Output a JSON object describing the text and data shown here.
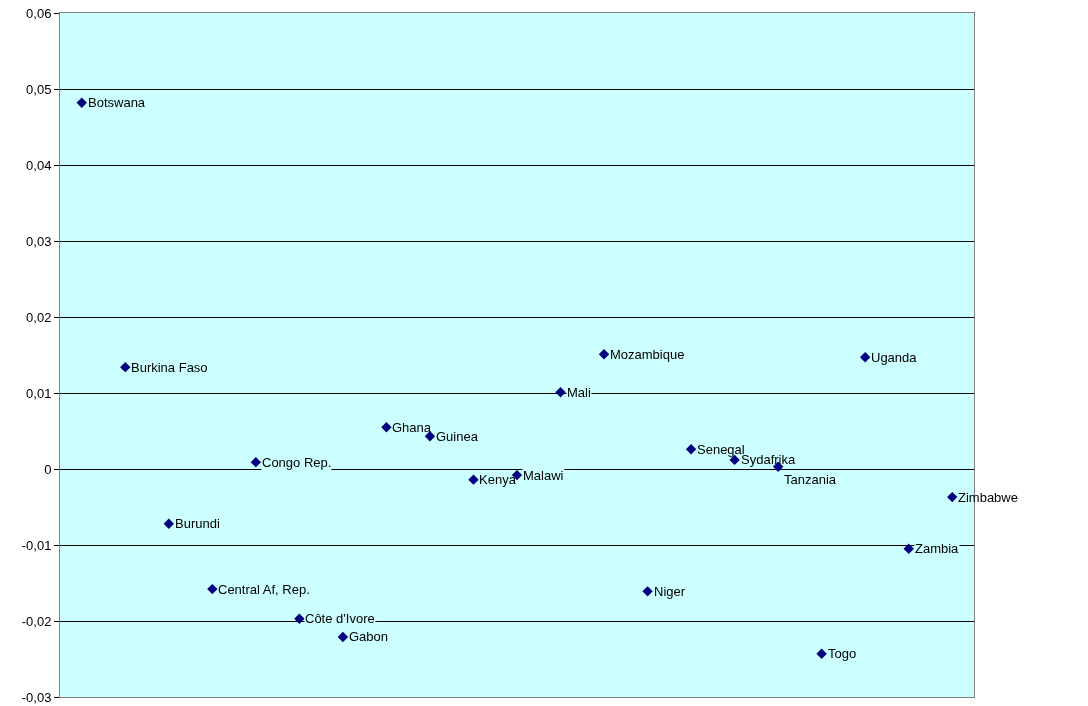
{
  "chart_data": {
    "type": "scatter",
    "categories": [
      null,
      null,
      null,
      null,
      null,
      null,
      null,
      null,
      null,
      null,
      null,
      null,
      null,
      null,
      null,
      null,
      null,
      null,
      null,
      null,
      null
    ],
    "series": [
      {
        "color": "#000080",
        "values": [
          0.0482,
          0.0134,
          -0.0072,
          -0.0158,
          0.0009,
          -0.0197,
          -0.0221,
          0.0055,
          0.0043,
          -0.0014,
          -0.0008,
          0.0101,
          0.0151,
          -0.0161,
          0.0026,
          0.0012,
          0.0003,
          -0.0243,
          0.0147,
          -0.0105,
          -0.0037
        ],
        "value_labels": [
          "Botswana",
          "Burkina Faso",
          "Burundi",
          "Central Af, Rep.",
          "Congo Rep.",
          "Côte d'Ivore",
          "Gabon",
          "Ghana",
          "Guinea",
          "Kenya",
          "Malawi",
          "Mali",
          "Mozambique",
          "Niger",
          "Senegal",
          "Sydafrika",
          "Tanzania",
          "Togo",
          "Uganda",
          "Zambia",
          "Zimbabwe"
        ]
      }
    ],
    "ylim": [
      -0.03,
      0.06
    ],
    "yticks": [
      {
        "value": -0.03,
        "label": "-0,03"
      },
      {
        "value": -0.02,
        "label": "-0,02"
      },
      {
        "value": -0.01,
        "label": "-0,01"
      },
      0,
      {
        "value": 0.01,
        "label": "0,01"
      },
      {
        "value": 0.02,
        "label": "0,02"
      },
      {
        "value": 0.03,
        "label": "0,03"
      },
      {
        "value": 0.04,
        "label": "0,04"
      },
      {
        "value": 0.05,
        "label": "0,05"
      },
      {
        "value": 0.06,
        "label": "0,06"
      }
    ],
    "grid": "y",
    "legend": false,
    "marker": "diamond",
    "tick_labels": "y"
  }
}
